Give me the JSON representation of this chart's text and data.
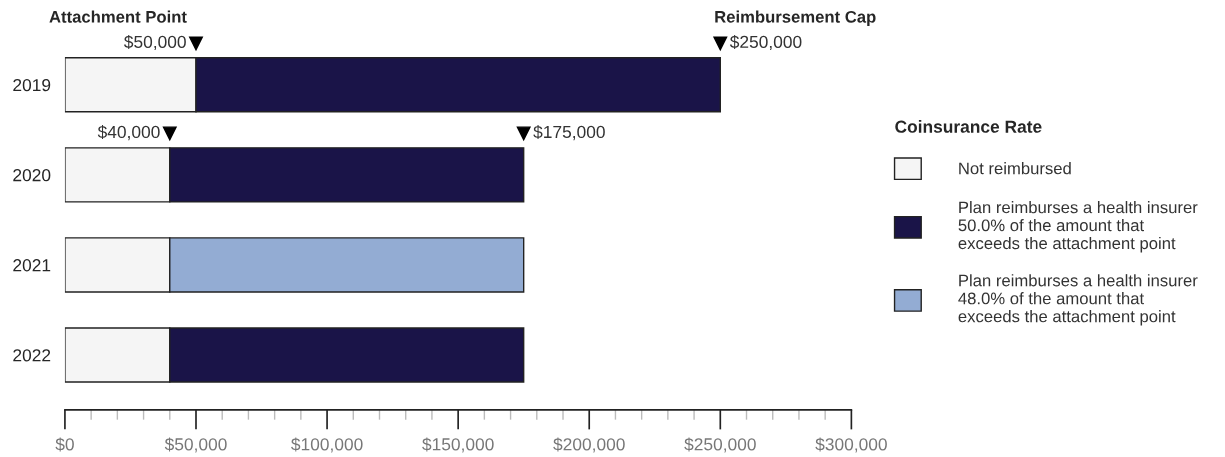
{
  "chart_data": {
    "type": "bar",
    "orientation": "horizontal",
    "stacked": true,
    "categories": [
      "2019",
      "2020",
      "2021",
      "2022"
    ],
    "series": [
      {
        "name": "Not reimbursed",
        "color": "#f5f5f5",
        "values": [
          50000,
          40000,
          40000,
          40000
        ]
      },
      {
        "name": "Plan reimburses a health insurer\n50.0% of the amount that\nexceeds the attachment point",
        "color": "#1a1448",
        "values": [
          200000,
          135000,
          null,
          135000
        ]
      },
      {
        "name": "Plan reimburses a health insurer\n48.0% of the amount that\nexceeds the attachment point",
        "color": "#93acd3",
        "values": [
          null,
          null,
          135000,
          null
        ]
      }
    ],
    "legend_title": "Coinsurance Rate",
    "legend": "right",
    "xlim": [
      0,
      300000
    ],
    "xticks": [
      {
        "value": 0,
        "label": "$0"
      },
      {
        "value": 10000,
        "label": null
      },
      {
        "value": 20000,
        "label": null
      },
      {
        "value": 30000,
        "label": null
      },
      {
        "value": 40000,
        "label": null
      },
      {
        "value": 50000,
        "label": "$50,000"
      },
      {
        "value": 60000,
        "label": null
      },
      {
        "value": 70000,
        "label": null
      },
      {
        "value": 80000,
        "label": null
      },
      {
        "value": 90000,
        "label": null
      },
      {
        "value": 100000,
        "label": "$100,000"
      },
      {
        "value": 110000,
        "label": null
      },
      {
        "value": 120000,
        "label": null
      },
      {
        "value": 130000,
        "label": null
      },
      {
        "value": 140000,
        "label": null
      },
      {
        "value": 150000,
        "label": "$150,000"
      },
      {
        "value": 160000,
        "label": null
      },
      {
        "value": 170000,
        "label": null
      },
      {
        "value": 180000,
        "label": null
      },
      {
        "value": 190000,
        "label": null
      },
      {
        "value": 200000,
        "label": "$200,000"
      },
      {
        "value": 210000,
        "label": null
      },
      {
        "value": 220000,
        "label": null
      },
      {
        "value": 230000,
        "label": null
      },
      {
        "value": 240000,
        "label": null
      },
      {
        "value": 250000,
        "label": "$250,000"
      },
      {
        "value": 260000,
        "label": null
      },
      {
        "value": 270000,
        "label": null
      },
      {
        "value": 280000,
        "label": null
      },
      {
        "value": 290000,
        "label": null
      },
      {
        "value": 300000,
        "label": "$300,000"
      }
    ],
    "annotations": [
      "Attachment Point",
      "Reimbursement Cap",
      {
        "text": "$50,000",
        "x": 50000,
        "y": "2019"
      },
      {
        "text": "$250,000",
        "x": 250000,
        "y": "2019"
      },
      {
        "text": "$40,000",
        "x": 40000,
        "y": "2020"
      },
      {
        "text": "$175,000",
        "x": 175000,
        "y": "2020"
      }
    ],
    "grid": false
  }
}
